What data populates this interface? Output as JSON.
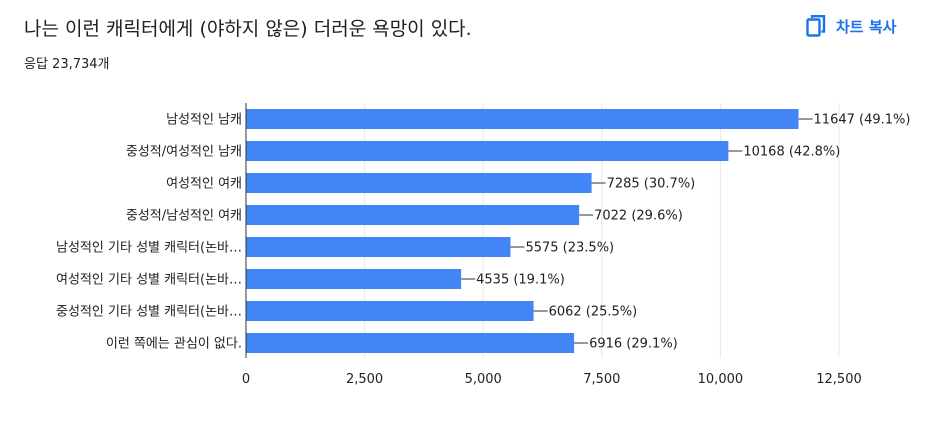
{
  "header": {
    "title": "나는 이런 캐릭터에게 (야하지 않은) 더러운 욕망이 있다.",
    "response_count": "응답 23,734개",
    "copy_chart_label": "차트 복사",
    "copy_icon": "copy-icon"
  },
  "colors": {
    "bar": "#4285f4",
    "accent": "#1a73e8",
    "text": "#202124",
    "grid": "#e8e8e8",
    "axis": "#333333"
  },
  "chart_data": {
    "type": "bar",
    "orientation": "horizontal",
    "title": "나는 이런 캐릭터에게 (야하지 않은) 더러운 욕망이 있다.",
    "subtitle": "응답 23,734개",
    "xlabel": "",
    "ylabel": "",
    "categories": [
      "남성적인 남캐",
      "중성적/여성적인 남캐",
      "여성적인 여캐",
      "중성적/남성적인 여캐",
      "남성적인 기타 성별 캐릭터(논바…",
      "여성적인 기타 성별 캐릭터(논바…",
      "중성적인 기타 성별 캐릭터(논바…",
      "이런 쪽에는 관심이 없다."
    ],
    "values": [
      11647,
      10168,
      7285,
      7022,
      5575,
      4535,
      6062,
      6916
    ],
    "data_labels": [
      "11647 (49.1%)",
      "10168 (42.8%)",
      "7285 (30.7%)",
      "7022 (29.6%)",
      "5575 (23.5%)",
      "4535 (19.1%)",
      "6062 (25.5%)",
      "6916 (29.1%)"
    ],
    "xlim": [
      0,
      12500
    ],
    "ticks": [
      0,
      2500,
      5000,
      7500,
      10000,
      12500
    ],
    "tick_labels": [
      "0",
      "2,500",
      "5,000",
      "7,500",
      "10,000",
      "12,500"
    ],
    "grid": true,
    "legend": "none"
  }
}
